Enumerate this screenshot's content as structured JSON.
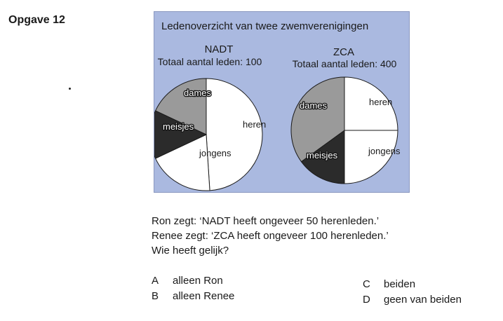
{
  "heading": "Opgave 12",
  "chart_data": {
    "type": "pie",
    "title": "Ledenoverzicht van twee zwemverenigingen",
    "colors": {
      "background": "#aab9e0",
      "heren": "#ffffff",
      "jongens": "#ffffff",
      "meisjes": "#2b2b2b",
      "dames": "#9a9a9a"
    },
    "charts": [
      {
        "name": "NADT",
        "total_label": "Totaal aantal leden: 100",
        "slices": [
          {
            "label": "heren",
            "value": 49
          },
          {
            "label": "jongens",
            "value": 19
          },
          {
            "label": "meisjes",
            "value": 14
          },
          {
            "label": "dames",
            "value": 18
          }
        ]
      },
      {
        "name": "ZCA",
        "total_label": "Totaal aantal leden: 400",
        "slices": [
          {
            "label": "heren",
            "value": 25
          },
          {
            "label": "jongens",
            "value": 25
          },
          {
            "label": "meisjes",
            "value": 15
          },
          {
            "label": "dames",
            "value": 35
          }
        ]
      }
    ]
  },
  "question": {
    "lines": [
      "Ron zegt: ‘NADT heeft ongeveer 50 herenleden.’",
      "Renee zegt: ‘ZCA heeft ongeveer 100 herenleden.’",
      "Wie heeft gelijk?"
    ],
    "options": [
      {
        "letter": "A",
        "text": "alleen Ron"
      },
      {
        "letter": "B",
        "text": "alleen Renee"
      },
      {
        "letter": "C",
        "text": "beiden"
      },
      {
        "letter": "D",
        "text": "geen van beiden"
      }
    ]
  }
}
